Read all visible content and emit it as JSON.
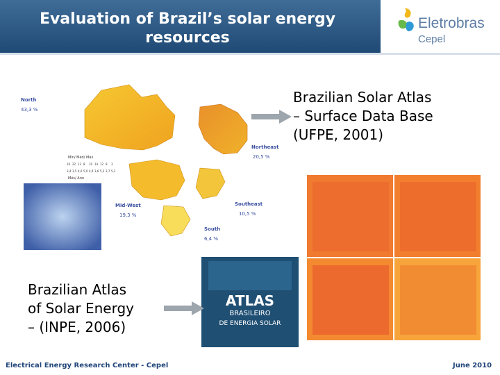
{
  "header": {
    "title_line1": "Evaluation of Brazil’s solar energy",
    "title_line2": "resources",
    "logo": {
      "name": "Eletrobras",
      "sub": "Cepel"
    }
  },
  "captions": {
    "ufpe": [
      "Brazilian Solar Atlas",
      "– Surface Data Base",
      "(UFPE, 2001)"
    ],
    "inpe": [
      "Brazilian Atlas",
      "of Solar Energy",
      "– (INPE, 2006)"
    ]
  },
  "left_map": {
    "regions": [
      {
        "name": "North",
        "value": "43,3 %"
      },
      {
        "name": "Northeast",
        "value": "20,5 %"
      },
      {
        "name": "Mid-West",
        "value": "19,3 %"
      },
      {
        "name": "Southeast",
        "value": "10,5 %"
      },
      {
        "name": "South",
        "value": "6,4 %"
      }
    ],
    "legend_top": "Mín/ Méd/ Máx",
    "legend_bottom": "Mês/ Ano",
    "legend_values_top": [
      "16",
      "22",
      "13",
      "8",
      "10",
      "14",
      "12",
      "9",
      "3"
    ],
    "legend_values_bottom": [
      "3,4",
      "3,5",
      "4,0",
      "5,0",
      "4,4",
      "3,6",
      "5,3",
      "3,7",
      "5,3"
    ]
  },
  "atlas_book": {
    "title_big": "ATLAS",
    "title_mid": "BRASILEIRO",
    "title_small": "DE ENERGIA SOLAR"
  },
  "footer": {
    "left": "Electrical Energy Research Center - Cepel",
    "right": "June 2010"
  }
}
